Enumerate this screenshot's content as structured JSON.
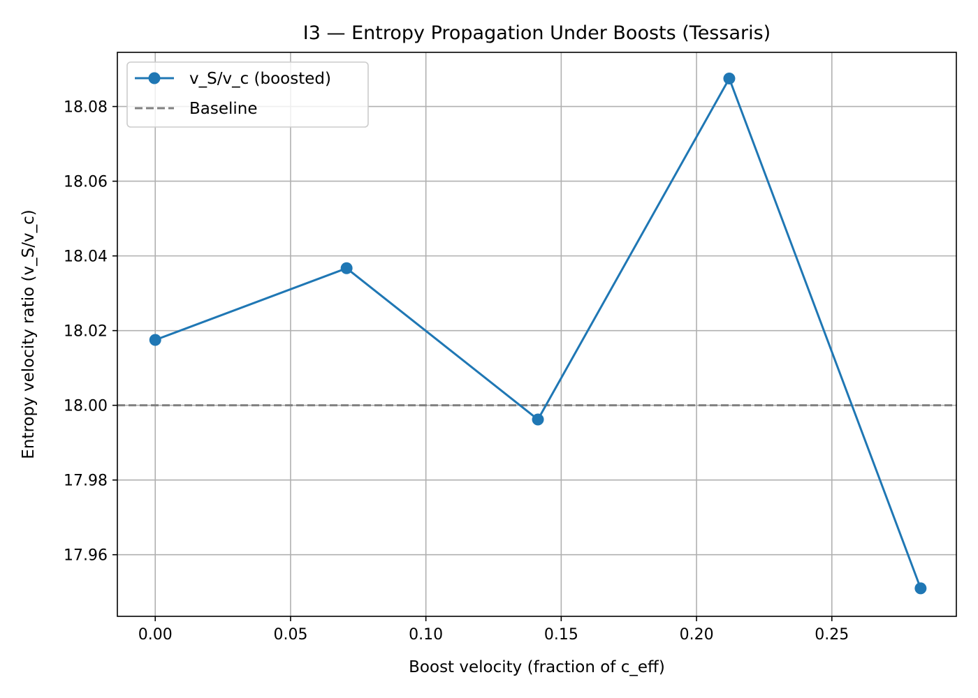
{
  "chart_data": {
    "type": "line",
    "title": "I3 — Entropy Propagation Under Boosts (Tessaris)",
    "xlabel": "Boost velocity (fraction of c_eff)",
    "ylabel": "Entropy velocity ratio (v_S/v_c)",
    "xlim": [
      -0.014,
      0.296
    ],
    "ylim": [
      17.9435,
      18.0945
    ],
    "xticks": [
      0.0,
      0.05,
      0.1,
      0.15,
      0.2,
      0.25
    ],
    "xtick_labels": [
      "0.00",
      "0.05",
      "0.10",
      "0.15",
      "0.20",
      "0.25"
    ],
    "yticks": [
      17.96,
      17.98,
      18.0,
      18.02,
      18.04,
      18.06,
      18.08
    ],
    "ytick_labels": [
      "17.96",
      "17.98",
      "18.00",
      "18.02",
      "18.04",
      "18.06",
      "18.08"
    ],
    "grid": true,
    "legend_position": "upper-left",
    "series": [
      {
        "name": "v_S/v_c (boosted)",
        "style": "solid-line-with-circle-markers",
        "color": "#1f77b4",
        "x": [
          0.0,
          0.0707,
          0.1414,
          0.2121,
          0.2828
        ],
        "y": [
          18.0175,
          18.0367,
          17.9962,
          18.0875,
          17.951
        ]
      }
    ],
    "reference_lines": [
      {
        "name": "Baseline",
        "orientation": "horizontal",
        "style": "dashed",
        "color": "#808080",
        "y": 18.0
      }
    ]
  }
}
